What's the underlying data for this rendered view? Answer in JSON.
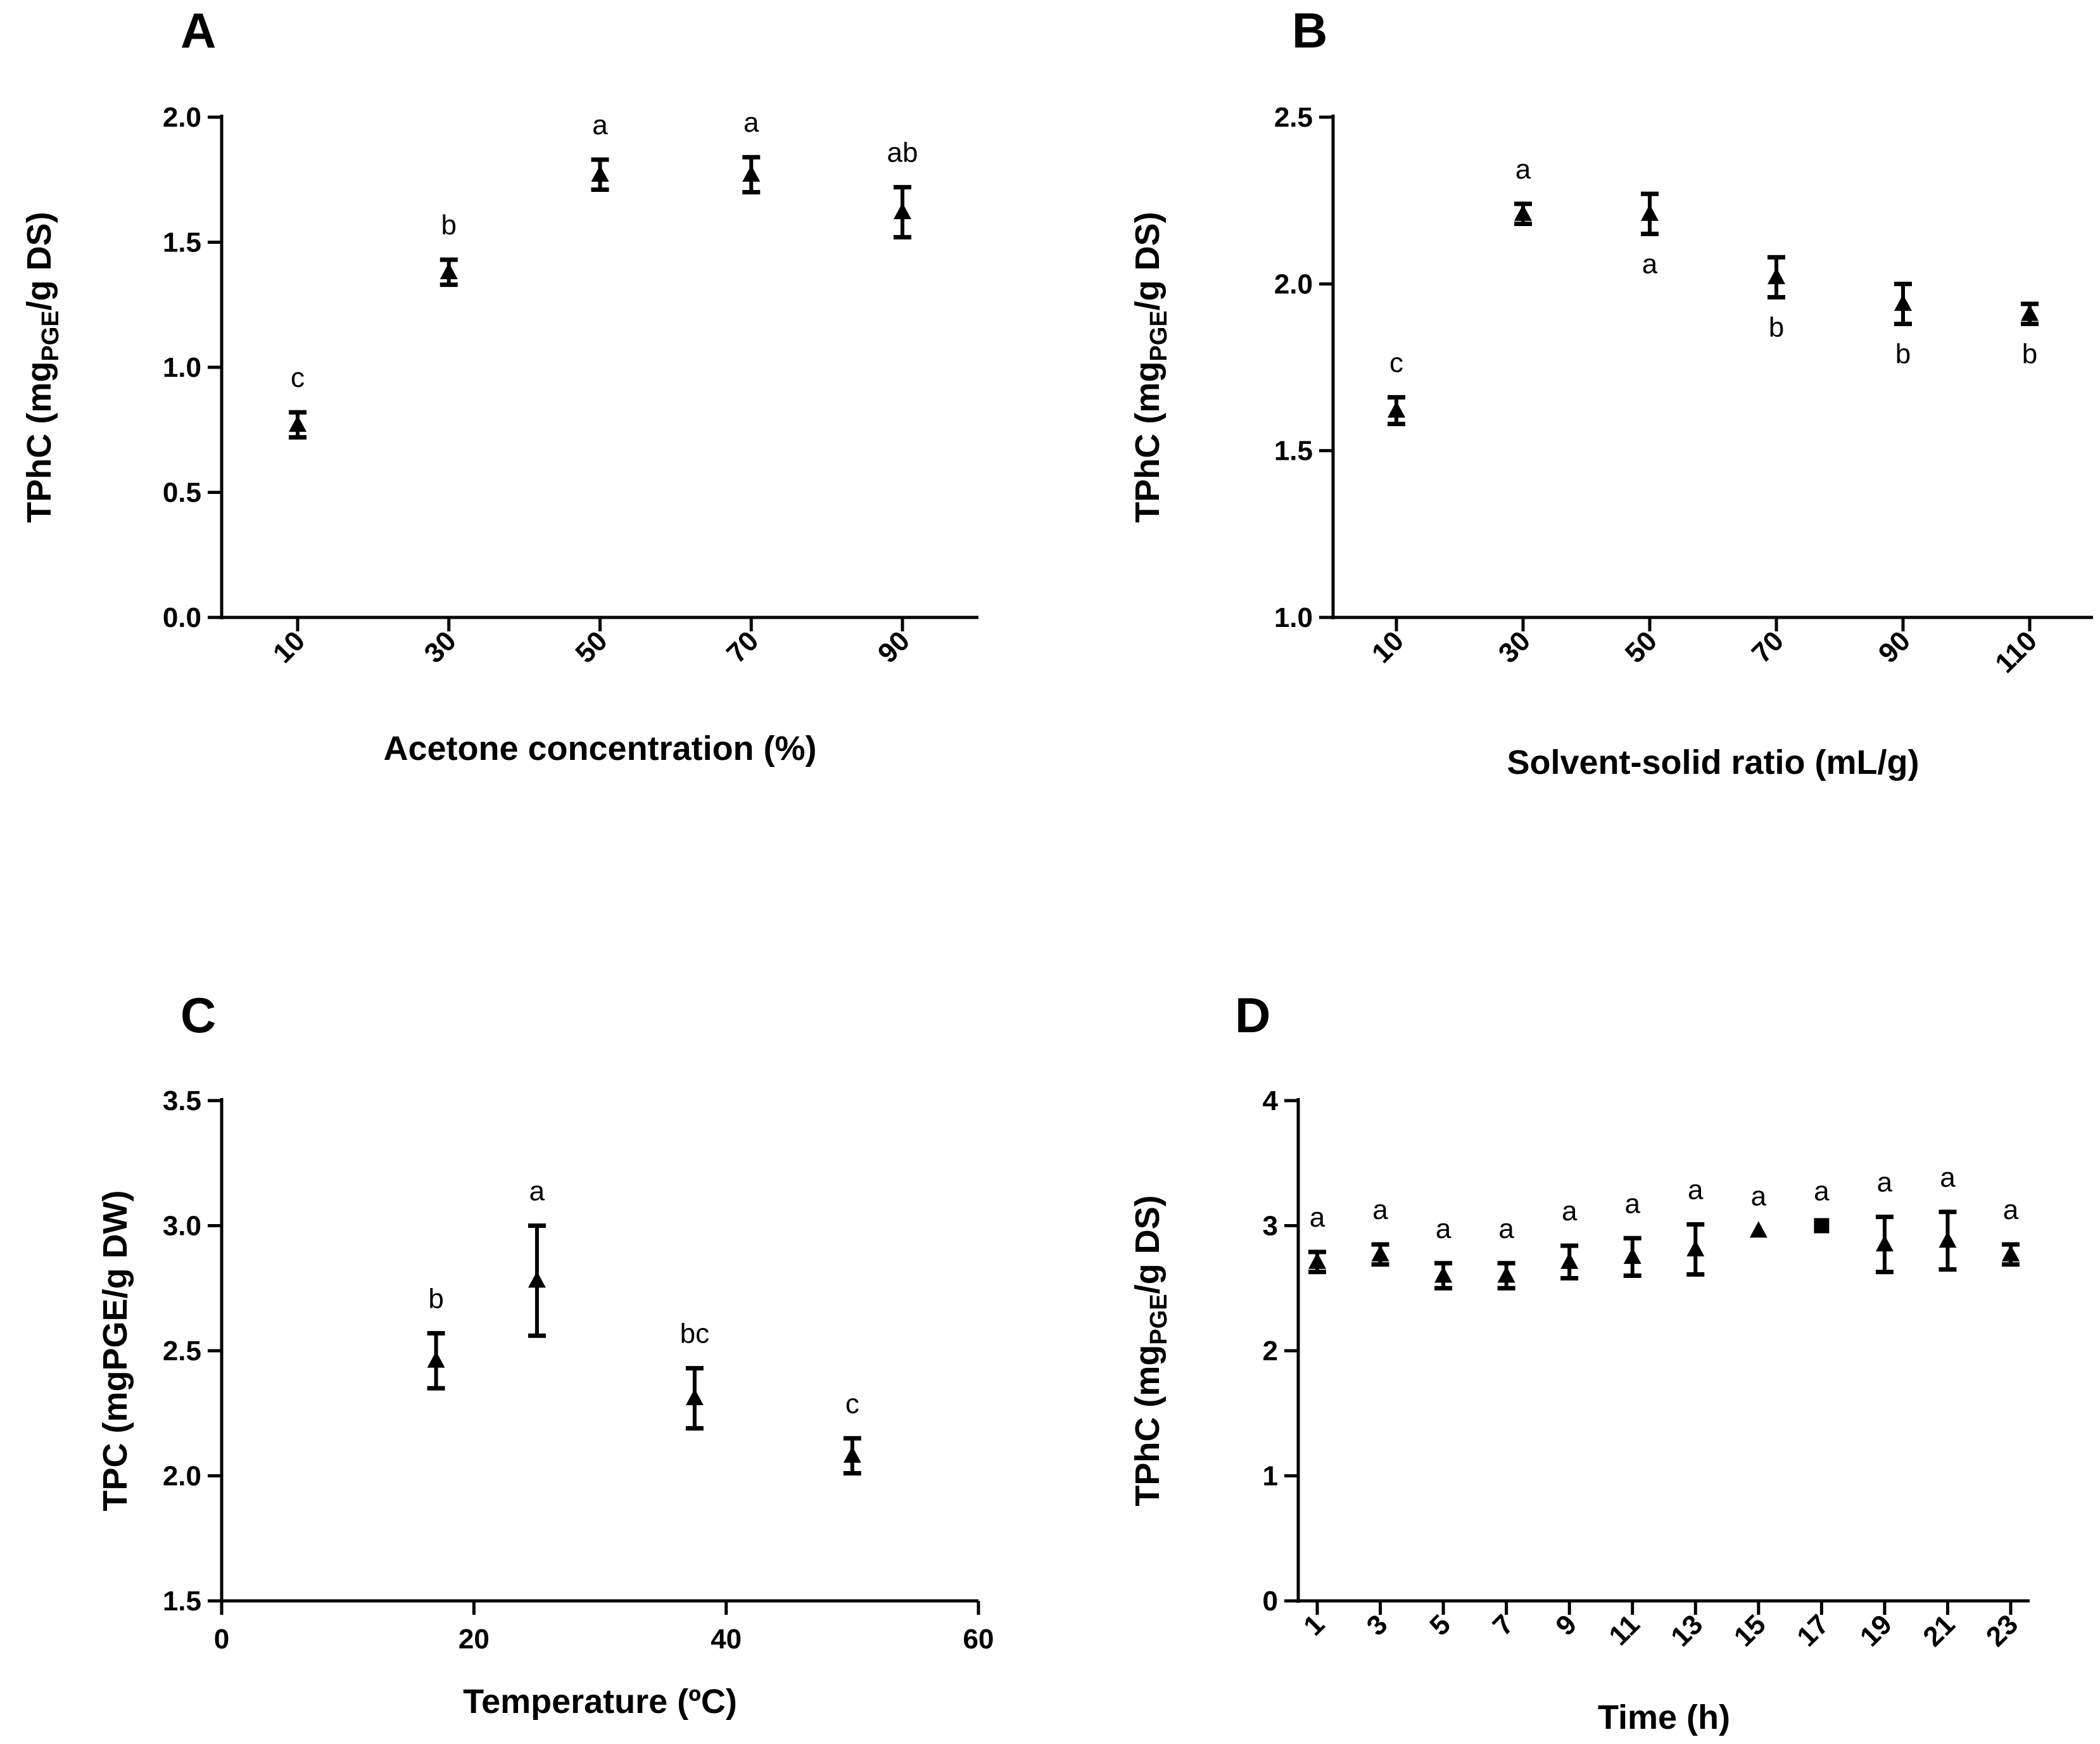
{
  "chart_data": [
    {
      "panel": "A",
      "type": "scatter",
      "xlabel": "Acetone concentration (%)",
      "ylabel": "TPhC (mg",
      "ylabel_sub": "PGE",
      "ylabel_tail": "/g DS)",
      "x_axis": "categorical",
      "x_tick_rotation": -45,
      "categories": [
        "10",
        "30",
        "50",
        "70",
        "90"
      ],
      "values": [
        0.77,
        1.38,
        1.77,
        1.77,
        1.62
      ],
      "errors": [
        0.05,
        0.05,
        0.06,
        0.07,
        0.1
      ],
      "significance": [
        "c",
        "b",
        "a",
        "a",
        "ab"
      ],
      "ylim": [
        0,
        2.0
      ],
      "yticks": [
        "0.0",
        "0.5",
        "1.0",
        "1.5",
        "2.0"
      ],
      "marker": "triangle"
    },
    {
      "panel": "B",
      "type": "scatter",
      "xlabel": "Solvent-solid ratio (mL/g)",
      "ylabel": "TPhC (mg",
      "ylabel_sub": "PGE",
      "ylabel_tail": "/g DS)",
      "x_axis": "categorical",
      "x_tick_rotation": -45,
      "categories": [
        "10",
        "30",
        "50",
        "70",
        "90",
        "110"
      ],
      "values": [
        1.62,
        2.21,
        2.21,
        2.02,
        1.94,
        1.91
      ],
      "errors": [
        0.04,
        0.03,
        0.06,
        0.06,
        0.06,
        0.03
      ],
      "significance": [
        "c",
        "a",
        "a",
        "b",
        "b",
        "b"
      ],
      "significance_position": [
        "above",
        "above",
        "below",
        "below",
        "below",
        "below"
      ],
      "ylim": [
        1.0,
        2.5
      ],
      "yticks": [
        "1.0",
        "1.5",
        "2.0",
        "2.5"
      ],
      "marker": "triangle"
    },
    {
      "panel": "C",
      "type": "scatter",
      "xlabel": "Temperature (ºC)",
      "ylabel": "TPC (mgPGE/g DW)",
      "x_axis": "numeric",
      "x_tick_rotation": 0,
      "x": [
        17,
        25,
        37.5,
        50
      ],
      "values": [
        2.46,
        2.78,
        2.31,
        2.08
      ],
      "errors": [
        0.11,
        0.22,
        0.12,
        0.07
      ],
      "significance": [
        "b",
        "a",
        "bc",
        "c"
      ],
      "xlim": [
        0,
        60
      ],
      "xticks": [
        "0",
        "20",
        "40",
        "60"
      ],
      "ylim": [
        1.5,
        3.5
      ],
      "yticks": [
        "1.5",
        "2.0",
        "2.5",
        "3.0",
        "3.5"
      ],
      "marker": "triangle"
    },
    {
      "panel": "D",
      "type": "scatter",
      "xlabel": "Time (h)",
      "ylabel": "TPhC (mg",
      "ylabel_sub": "PGE",
      "ylabel_tail": "/g DS)",
      "x_axis": "categorical",
      "x_tick_rotation": -45,
      "categories": [
        "1",
        "3",
        "5",
        "7",
        "9",
        "11",
        "13",
        "15",
        "17",
        "19",
        "21",
        "23"
      ],
      "values": [
        2.71,
        2.77,
        2.6,
        2.6,
        2.71,
        2.75,
        2.81,
        2.96,
        3.0,
        2.85,
        2.88,
        2.77
      ],
      "errors": [
        0.08,
        0.08,
        0.1,
        0.1,
        0.13,
        0.15,
        0.2,
        0.0,
        0.0,
        0.22,
        0.23,
        0.08
      ],
      "significance": [
        "a",
        "a",
        "a",
        "a",
        "a",
        "a",
        "a",
        "a",
        "a",
        "a",
        "a",
        "a"
      ],
      "markers": [
        "triangle",
        "triangle",
        "triangle",
        "triangle",
        "triangle",
        "triangle",
        "triangle",
        "triangle",
        "square",
        "triangle",
        "triangle",
        "triangle"
      ],
      "ylim": [
        0,
        4
      ],
      "yticks": [
        "0",
        "1",
        "2",
        "3",
        "4"
      ],
      "marker": "triangle"
    }
  ]
}
